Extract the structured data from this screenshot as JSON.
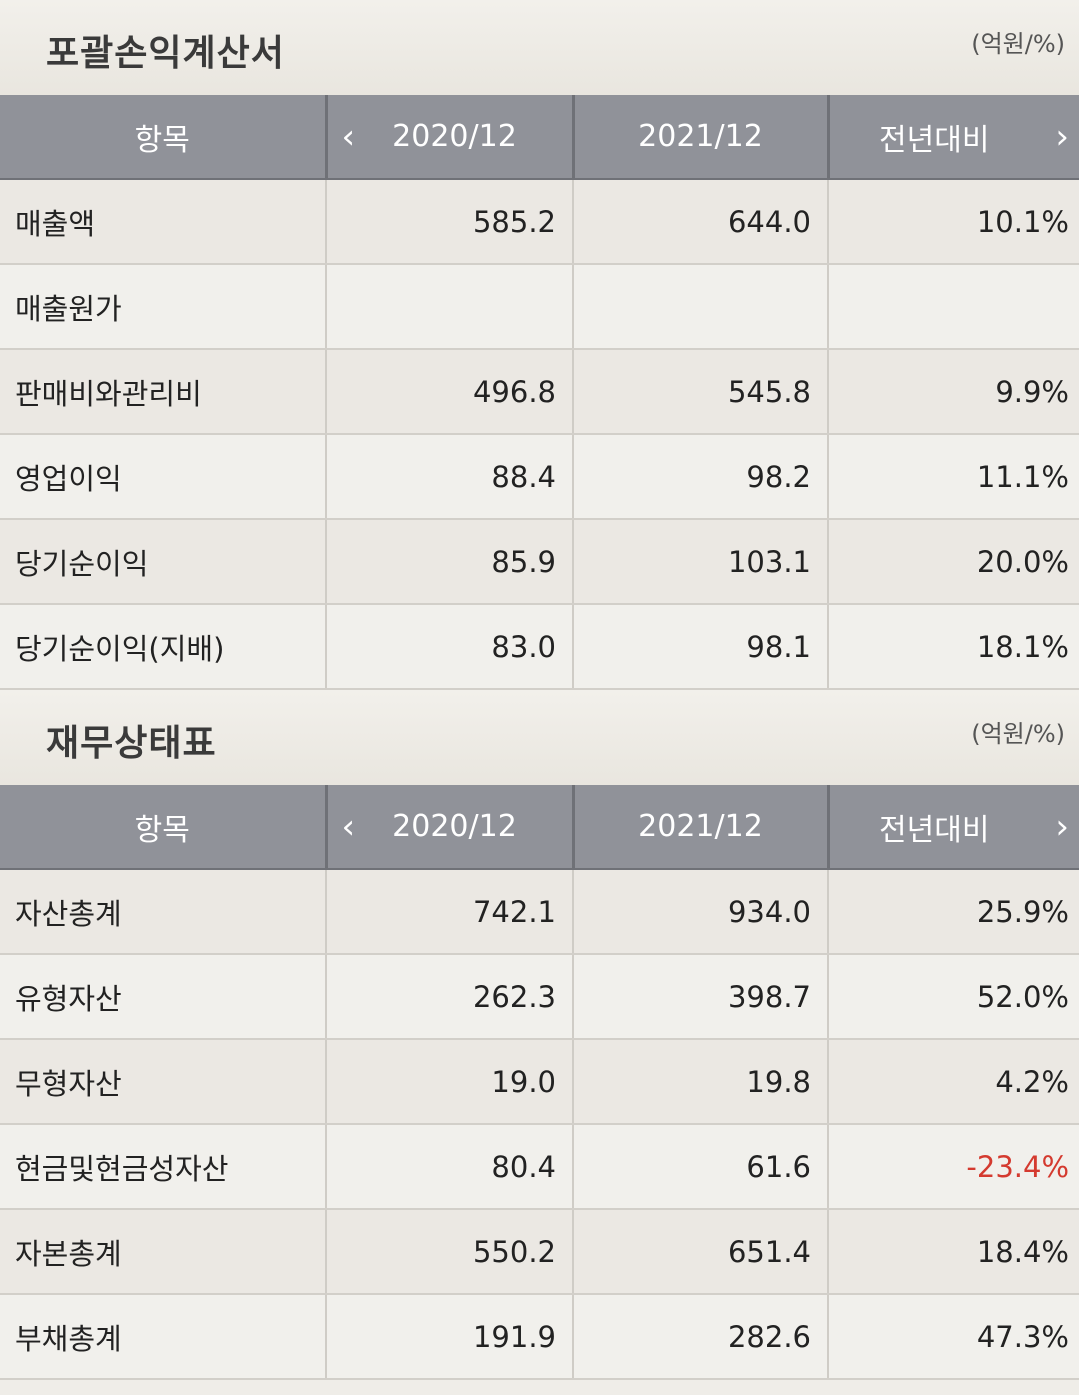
{
  "income": {
    "title": "포괄손익계산서",
    "unit": "(억원/%)",
    "headers": [
      "항목",
      "2020/12",
      "2021/12",
      "전년대비"
    ],
    "rows": [
      {
        "item": "매출액",
        "v2020": "585.2",
        "v2021": "644.0",
        "yoy": "10.1%"
      },
      {
        "item": "매출원가",
        "v2020": "",
        "v2021": "",
        "yoy": ""
      },
      {
        "item": "판매비와관리비",
        "v2020": "496.8",
        "v2021": "545.8",
        "yoy": "9.9%"
      },
      {
        "item": "영업이익",
        "v2020": "88.4",
        "v2021": "98.2",
        "yoy": "11.1%"
      },
      {
        "item": "당기순이익",
        "v2020": "85.9",
        "v2021": "103.1",
        "yoy": "20.0%"
      },
      {
        "item": "당기순이익(지배)",
        "v2020": "83.0",
        "v2021": "98.1",
        "yoy": "18.1%"
      }
    ]
  },
  "balance": {
    "title": "재무상태표",
    "unit": "(억원/%)",
    "headers": [
      "항목",
      "2020/12",
      "2021/12",
      "전년대비"
    ],
    "rows": [
      {
        "item": "자산총계",
        "v2020": "742.1",
        "v2021": "934.0",
        "yoy": "25.9%"
      },
      {
        "item": "유형자산",
        "v2020": "262.3",
        "v2021": "398.7",
        "yoy": "52.0%"
      },
      {
        "item": "무형자산",
        "v2020": "19.0",
        "v2021": "19.8",
        "yoy": "4.2%"
      },
      {
        "item": "현금및현금성자산",
        "v2020": "80.4",
        "v2021": "61.6",
        "yoy": "-23.4%"
      },
      {
        "item": "자본총계",
        "v2020": "550.2",
        "v2021": "651.4",
        "yoy": "18.4%"
      },
      {
        "item": "부채총계",
        "v2020": "191.9",
        "v2021": "282.6",
        "yoy": "47.3%"
      }
    ]
  },
  "icons": {
    "prev": "chevron-left-icon",
    "next": "chevron-right-icon"
  },
  "colors": {
    "negative": "#d43a2f",
    "header_bg": "#909299"
  }
}
